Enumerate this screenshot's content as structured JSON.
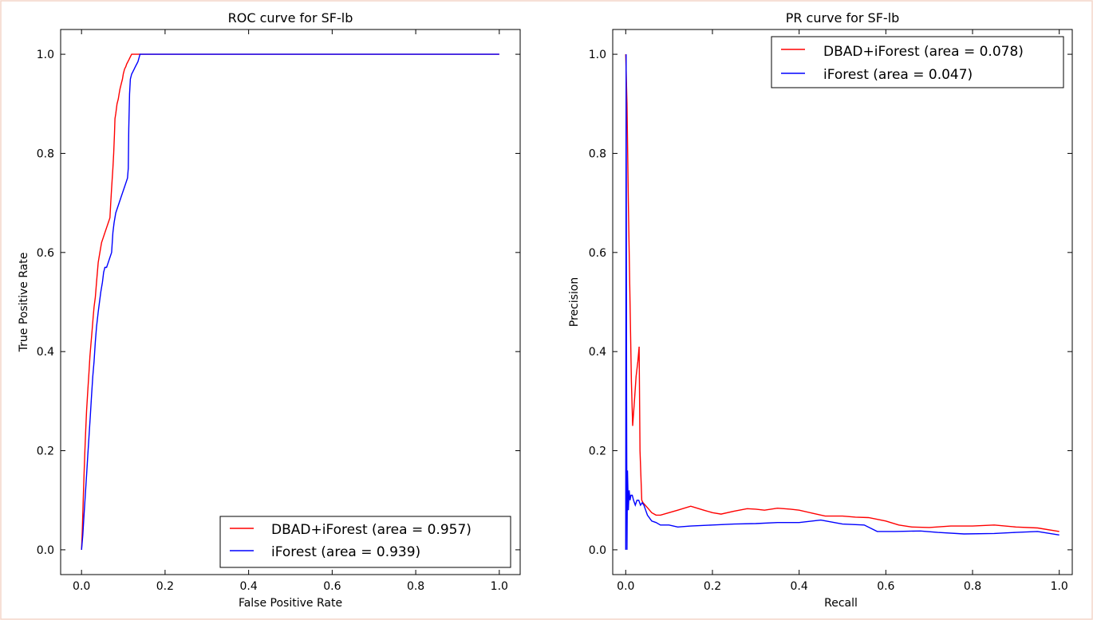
{
  "colors": {
    "red_series": "#ff0000",
    "blue_series": "#0000ff",
    "frame_border": "#f3d6c8"
  },
  "chart_data": [
    {
      "type": "line",
      "title": "ROC curve for SF-lb",
      "xlabel": "False Positive Rate",
      "ylabel": "True Positive Rate",
      "xlim": [
        -0.05,
        1.05
      ],
      "ylim": [
        -0.05,
        1.05
      ],
      "xticks": [
        0.0,
        0.2,
        0.4,
        0.6,
        0.8,
        1.0
      ],
      "yticks": [
        0.0,
        0.2,
        0.4,
        0.6,
        0.8,
        1.0
      ],
      "xtick_labels": [
        "0.0",
        "0.2",
        "0.4",
        "0.6",
        "0.8",
        "1.0"
      ],
      "ytick_labels": [
        "0.0",
        "0.2",
        "0.4",
        "0.6",
        "0.8",
        "1.0"
      ],
      "grid": false,
      "legend_position": "bottom-right",
      "series": [
        {
          "name": "DBAD+iForest (area = 0.957)",
          "color": "#ff0000",
          "x": [
            0.0,
            0.002,
            0.004,
            0.006,
            0.008,
            0.01,
            0.012,
            0.015,
            0.018,
            0.02,
            0.022,
            0.025,
            0.028,
            0.03,
            0.033,
            0.036,
            0.04,
            0.044,
            0.048,
            0.052,
            0.056,
            0.06,
            0.064,
            0.068,
            0.07,
            0.072,
            0.075,
            0.077,
            0.079,
            0.08,
            0.082,
            0.085,
            0.088,
            0.09,
            0.092,
            0.095,
            0.098,
            0.1,
            0.103,
            0.106,
            0.108,
            0.111,
            0.114,
            0.117,
            0.12,
            0.124,
            0.128,
            0.131,
            0.134,
            1.0
          ],
          "y": [
            0.0,
            0.04,
            0.1,
            0.15,
            0.2,
            0.24,
            0.28,
            0.32,
            0.36,
            0.39,
            0.41,
            0.44,
            0.47,
            0.49,
            0.51,
            0.54,
            0.58,
            0.6,
            0.62,
            0.63,
            0.64,
            0.65,
            0.66,
            0.67,
            0.7,
            0.73,
            0.77,
            0.8,
            0.84,
            0.87,
            0.88,
            0.9,
            0.91,
            0.92,
            0.93,
            0.94,
            0.95,
            0.96,
            0.97,
            0.975,
            0.98,
            0.985,
            0.99,
            0.995,
            1.0,
            1.0,
            1.0,
            1.0,
            1.0,
            1.0
          ]
        },
        {
          "name": "iForest (area = 0.939)",
          "color": "#0000ff",
          "x": [
            0.0,
            0.003,
            0.006,
            0.009,
            0.012,
            0.015,
            0.018,
            0.021,
            0.024,
            0.027,
            0.03,
            0.033,
            0.036,
            0.04,
            0.043,
            0.046,
            0.05,
            0.053,
            0.056,
            0.06,
            0.064,
            0.068,
            0.072,
            0.075,
            0.078,
            0.082,
            0.086,
            0.09,
            0.094,
            0.098,
            0.102,
            0.106,
            0.11,
            0.112,
            0.113,
            0.115,
            0.117,
            0.12,
            0.123,
            0.126,
            0.129,
            0.132,
            0.135,
            0.14,
            1.0
          ],
          "y": [
            0.0,
            0.03,
            0.07,
            0.11,
            0.15,
            0.19,
            0.23,
            0.27,
            0.31,
            0.35,
            0.38,
            0.42,
            0.45,
            0.48,
            0.5,
            0.52,
            0.54,
            0.56,
            0.57,
            0.57,
            0.58,
            0.59,
            0.6,
            0.64,
            0.66,
            0.68,
            0.69,
            0.7,
            0.71,
            0.72,
            0.73,
            0.74,
            0.75,
            0.77,
            0.85,
            0.92,
            0.95,
            0.96,
            0.965,
            0.97,
            0.975,
            0.98,
            0.985,
            1.0,
            1.0
          ]
        }
      ]
    },
    {
      "type": "line",
      "title": "PR curve for SF-lb",
      "xlabel": "Recall",
      "ylabel": "Precision",
      "xlim": [
        -0.03,
        1.03
      ],
      "ylim": [
        -0.05,
        1.05
      ],
      "xticks": [
        0.0,
        0.2,
        0.4,
        0.6,
        0.8,
        1.0
      ],
      "yticks": [
        0.0,
        0.2,
        0.4,
        0.6,
        0.8,
        1.0
      ],
      "xtick_labels": [
        "0.0",
        "0.2",
        "0.4",
        "0.6",
        "0.8",
        "1.0"
      ],
      "ytick_labels": [
        "0.0",
        "0.2",
        "0.4",
        "0.6",
        "0.8",
        "1.0"
      ],
      "grid": false,
      "legend_position": "top-right",
      "series": [
        {
          "name": "DBAD+iForest (area = 0.078)",
          "color": "#ff0000",
          "x": [
            0.0,
            0.003,
            0.006,
            0.01,
            0.013,
            0.016,
            0.02,
            0.024,
            0.028,
            0.031,
            0.033,
            0.035,
            0.037,
            0.04,
            0.045,
            0.05,
            0.06,
            0.07,
            0.08,
            0.1,
            0.12,
            0.15,
            0.18,
            0.2,
            0.22,
            0.25,
            0.28,
            0.3,
            0.32,
            0.35,
            0.38,
            0.4,
            0.43,
            0.46,
            0.5,
            0.53,
            0.56,
            0.6,
            0.63,
            0.66,
            0.7,
            0.75,
            0.8,
            0.85,
            0.9,
            0.95,
            1.0
          ],
          "y": [
            1.0,
            0.9,
            0.7,
            0.5,
            0.34,
            0.25,
            0.3,
            0.35,
            0.38,
            0.41,
            0.2,
            0.15,
            0.1,
            0.095,
            0.09,
            0.085,
            0.075,
            0.07,
            0.07,
            0.075,
            0.08,
            0.088,
            0.08,
            0.075,
            0.072,
            0.078,
            0.083,
            0.082,
            0.08,
            0.084,
            0.082,
            0.08,
            0.074,
            0.068,
            0.068,
            0.066,
            0.065,
            0.058,
            0.05,
            0.046,
            0.045,
            0.048,
            0.048,
            0.05,
            0.046,
            0.044,
            0.037
          ]
        },
        {
          "name": "iForest (area = 0.047)",
          "color": "#0000ff",
          "x": [
            0.0,
            0.001,
            0.002,
            0.003,
            0.004,
            0.006,
            0.008,
            0.01,
            0.012,
            0.015,
            0.018,
            0.022,
            0.026,
            0.03,
            0.034,
            0.038,
            0.042,
            0.046,
            0.05,
            0.06,
            0.07,
            0.08,
            0.1,
            0.12,
            0.15,
            0.2,
            0.25,
            0.3,
            0.35,
            0.4,
            0.45,
            0.5,
            0.55,
            0.58,
            0.62,
            0.68,
            0.72,
            0.78,
            0.85,
            0.9,
            0.95,
            1.0
          ],
          "y": [
            0.0,
            1.0,
            0.3,
            0.0,
            0.16,
            0.08,
            0.12,
            0.1,
            0.11,
            0.11,
            0.1,
            0.09,
            0.1,
            0.1,
            0.09,
            0.095,
            0.09,
            0.08,
            0.07,
            0.058,
            0.055,
            0.05,
            0.05,
            0.046,
            0.048,
            0.05,
            0.052,
            0.053,
            0.055,
            0.055,
            0.06,
            0.052,
            0.05,
            0.037,
            0.037,
            0.038,
            0.035,
            0.032,
            0.033,
            0.035,
            0.037,
            0.03
          ]
        }
      ]
    }
  ]
}
